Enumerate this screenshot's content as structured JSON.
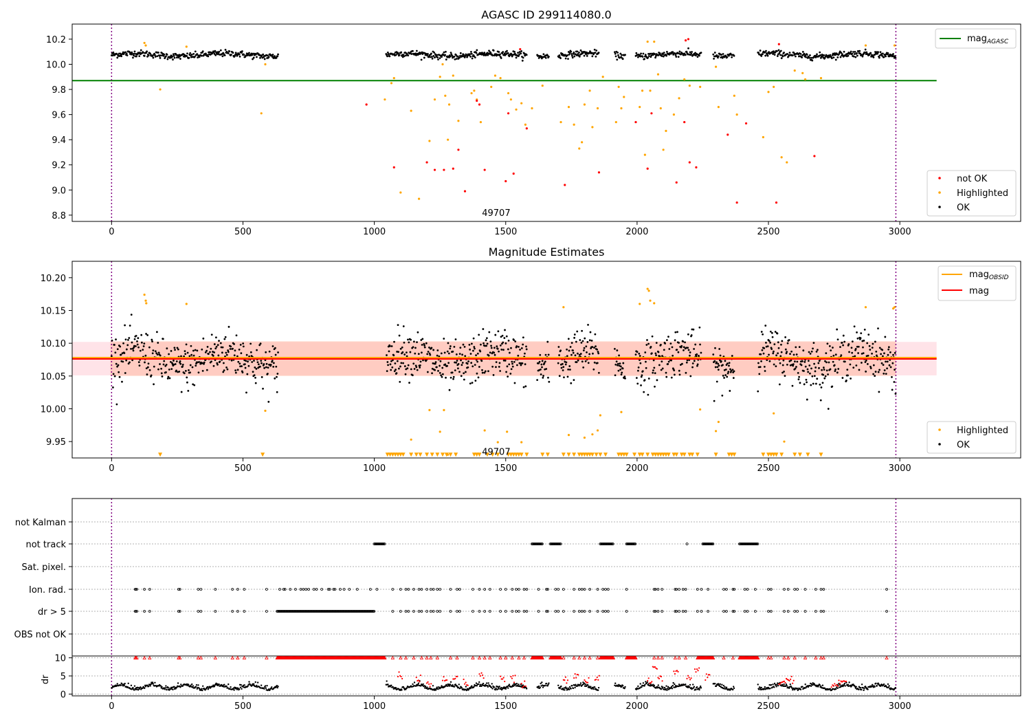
{
  "chart_data": [
    {
      "type": "scatter",
      "title": "AGASC ID 299114080.0",
      "xlabel": "",
      "ylabel": "",
      "xlim": [
        -150,
        3460
      ],
      "ylim": [
        8.75,
        10.32
      ],
      "xticks": [
        0,
        500,
        1000,
        1500,
        2000,
        2500,
        3000
      ],
      "yticks": [
        8.8,
        9.0,
        9.2,
        9.4,
        9.6,
        9.8,
        10.0,
        10.2
      ],
      "ytick_format": 1,
      "grid": false,
      "vlines": [
        0,
        2985
      ],
      "hlines": [
        {
          "name": "mag_AGASC",
          "y": 9.87,
          "x_range": [
            -150,
            3140
          ],
          "color": "#008000"
        }
      ],
      "annotation": {
        "text": "49707",
        "x": 1490,
        "y": 8.82
      },
      "series": [
        {
          "name": "not OK",
          "color": "#ff0000",
          "x": [
            970,
            1075,
            1200,
            1230,
            1265,
            1300,
            1320,
            1345,
            1390,
            1400,
            1420,
            1500,
            1510,
            1530,
            1555,
            1580,
            1725,
            1855,
            1995,
            2040,
            2055,
            2150,
            2180,
            2185,
            2195,
            2200,
            2225,
            2345,
            2380,
            2415,
            2530,
            2540,
            2675
          ],
          "y": [
            9.68,
            9.18,
            9.22,
            9.16,
            9.16,
            9.17,
            9.32,
            8.99,
            9.71,
            9.68,
            9.16,
            9.07,
            9.61,
            9.13,
            10.12,
            9.49,
            9.04,
            9.14,
            9.54,
            9.17,
            9.61,
            9.06,
            9.54,
            10.19,
            10.2,
            9.22,
            9.18,
            9.44,
            8.9,
            9.53,
            8.9,
            10.16,
            9.27
          ]
        },
        {
          "name": "Highlighted",
          "color": "#ffa500",
          "x": [
            125,
            130,
            185,
            285,
            570,
            585,
            1040,
            1065,
            1075,
            1100,
            1140,
            1170,
            1210,
            1230,
            1250,
            1260,
            1270,
            1280,
            1285,
            1300,
            1320,
            1370,
            1380,
            1390,
            1405,
            1445,
            1460,
            1480,
            1510,
            1520,
            1540,
            1560,
            1575,
            1600,
            1640,
            1710,
            1740,
            1760,
            1780,
            1790,
            1800,
            1820,
            1830,
            1850,
            1870,
            1920,
            1930,
            1940,
            1950,
            2010,
            2020,
            2030,
            2040,
            2050,
            2065,
            2080,
            2090,
            2100,
            2110,
            2140,
            2160,
            2180,
            2200,
            2240,
            2300,
            2310,
            2370,
            2380,
            2480,
            2500,
            2520,
            2550,
            2570,
            2600,
            2630,
            2640,
            2700,
            2870,
            2980
          ],
          "y": [
            10.17,
            10.15,
            9.8,
            10.14,
            9.61,
            10.0,
            9.72,
            9.85,
            9.89,
            8.98,
            9.63,
            8.93,
            9.39,
            9.72,
            9.9,
            10.0,
            9.75,
            9.4,
            9.68,
            9.91,
            9.55,
            9.77,
            9.79,
            9.72,
            9.54,
            9.82,
            9.91,
            9.89,
            9.77,
            9.72,
            9.64,
            9.69,
            9.52,
            9.65,
            9.83,
            9.54,
            9.66,
            9.52,
            9.33,
            9.38,
            9.68,
            9.79,
            9.5,
            9.65,
            9.9,
            9.54,
            9.82,
            9.65,
            9.74,
            9.66,
            9.79,
            9.28,
            10.18,
            9.79,
            10.18,
            9.92,
            9.65,
            9.32,
            9.47,
            9.6,
            9.73,
            9.88,
            9.83,
            9.82,
            9.98,
            9.66,
            9.75,
            9.6,
            9.42,
            9.78,
            9.82,
            9.26,
            9.22,
            9.95,
            9.93,
            9.88,
            9.89,
            10.15,
            10.15
          ]
        },
        {
          "name": "OK",
          "color": "#000000",
          "generated": true
        }
      ],
      "legend": [
        "not OK",
        "Highlighted",
        "OK"
      ],
      "legend_placement": "lower right"
    },
    {
      "type": "scatter",
      "title": "Magnitude Estimates",
      "xlabel": "",
      "ylabel": "",
      "xlim": [
        -150,
        3460
      ],
      "ylim": [
        9.925,
        10.225
      ],
      "xticks": [
        0,
        500,
        1000,
        1500,
        2000,
        2500,
        3000
      ],
      "yticks": [
        9.95,
        10.0,
        10.05,
        10.1,
        10.15,
        10.2
      ],
      "ytick_format": 2,
      "grid": false,
      "vlines": [
        0,
        2985
      ],
      "hlines": [
        {
          "name": "mag_OBSID",
          "y": 10.078,
          "x_range": [
            -150,
            3140
          ],
          "color": "#ffa500"
        },
        {
          "name": "mag",
          "y": 10.076,
          "x_range": [
            -150,
            3140
          ],
          "color": "#ff0000"
        }
      ],
      "bands": [
        {
          "y": [
            10.051,
            10.102
          ],
          "x_range": [
            -150,
            3140
          ],
          "color": "#ffc0cb",
          "opacity": 0.45
        },
        {
          "y": [
            10.05,
            10.103
          ],
          "x_range": [
            -5,
            2985
          ],
          "color": "#ffa07a",
          "opacity": 0.35
        }
      ],
      "annotation": {
        "text": "49707",
        "x": 1490,
        "y": 9.935
      },
      "series": [
        {
          "name": "Highlighted",
          "color": "#ffa500",
          "x": [
            125,
            130,
            132,
            285,
            585,
            1140,
            1210,
            1250,
            1265,
            1280,
            1420,
            1470,
            1505,
            1560,
            1720,
            1740,
            1800,
            1830,
            1850,
            1860,
            1940,
            2010,
            2040,
            2045,
            2050,
            2065,
            2240,
            2300,
            2310,
            2520,
            2560,
            2870,
            2975,
            2980
          ],
          "y": [
            10.174,
            10.165,
            10.161,
            10.16,
            9.997,
            9.953,
            9.998,
            9.965,
            9.998,
            9.93,
            9.967,
            9.949,
            9.965,
            9.949,
            10.155,
            9.96,
            9.956,
            9.961,
            9.967,
            9.99,
            9.995,
            10.16,
            10.183,
            10.18,
            10.165,
            10.161,
            9.999,
            9.966,
            9.98,
            9.993,
            9.95,
            10.155,
            10.153,
            10.155
          ]
        },
        {
          "name": "Highlighted-limits",
          "color": "#ffa500",
          "marker": "triangle-down",
          "y": 9.93,
          "x": [
            185,
            575,
            1050,
            1060,
            1070,
            1080,
            1090,
            1100,
            1110,
            1140,
            1160,
            1175,
            1200,
            1220,
            1240,
            1260,
            1275,
            1290,
            1310,
            1380,
            1390,
            1400,
            1430,
            1450,
            1470,
            1510,
            1520,
            1530,
            1540,
            1550,
            1560,
            1580,
            1640,
            1660,
            1720,
            1740,
            1760,
            1780,
            1790,
            1800,
            1810,
            1820,
            1830,
            1845,
            1860,
            1880,
            1930,
            1940,
            1950,
            1960,
            1990,
            2010,
            2020,
            2040,
            2060,
            2070,
            2080,
            2090,
            2100,
            2110,
            2120,
            2140,
            2150,
            2170,
            2180,
            2200,
            2210,
            2230,
            2300,
            2350,
            2360,
            2370,
            2480,
            2500,
            2510,
            2520,
            2530,
            2550,
            2600,
            2620,
            2650,
            2700
          ]
        },
        {
          "name": "OK",
          "color": "#000000",
          "generated": true
        }
      ],
      "legend": [
        "mag_OBSID",
        "mag",
        "Highlighted",
        "OK"
      ],
      "legend_placement": "upper right / lower right"
    },
    {
      "type": "scatter",
      "title": "",
      "xlabel": "",
      "ylabel": "",
      "xlim": [
        -150,
        3460
      ],
      "xticks": [
        0,
        500,
        1000,
        1500,
        2000,
        2500,
        3000
      ],
      "vlines": [
        0,
        2985
      ],
      "category_rows": [
        "not Kalman",
        "not track",
        "Sat. pixel.",
        "Ion. rad.",
        "dr > 5",
        "OBS not OK"
      ],
      "flag_points": {
        "not Kalman": [],
        "not track": [
          [
            1000,
            1040
          ],
          [
            1600,
            1640
          ],
          [
            1670,
            1710
          ],
          [
            1860,
            1910
          ],
          [
            1960,
            1995
          ],
          [
            2190,
            2192
          ],
          [
            2250,
            2290
          ],
          [
            2390,
            2460
          ]
        ],
        "Sat. pixel.": [],
        "Ion. rad.": [
          90,
          92,
          96,
          125,
          145,
          255,
          260,
          330,
          340,
          395,
          460,
          480,
          505,
          590,
          640,
          655,
          660,
          680,
          700,
          720,
          730,
          740,
          750,
          770,
          780,
          800,
          825,
          830,
          845,
          850,
          870,
          885,
          905,
          935,
          985,
          1010,
          1070,
          1100,
          1120,
          1130,
          1150,
          1170,
          1180,
          1200,
          1215,
          1225,
          1240,
          1250,
          1290,
          1315,
          1325,
          1375,
          1400,
          1420,
          1440,
          1480,
          1500,
          1525,
          1540,
          1550,
          1570,
          1580,
          1625,
          1655,
          1660,
          1690,
          1700,
          1720,
          1760,
          1780,
          1790,
          1800,
          1820,
          1850,
          1870,
          1880,
          1890,
          1960,
          2065,
          2070,
          2080,
          2095,
          2145,
          2150,
          2160,
          2175,
          2185,
          2230,
          2245,
          2270,
          2330,
          2340,
          2365,
          2370,
          2410,
          2420,
          2450,
          2500,
          2510,
          2560,
          2575,
          2600,
          2610,
          2640,
          2680,
          2700,
          2710,
          2950
        ],
        "dr > 5": [
          90,
          92,
          96,
          125,
          145,
          255,
          260,
          330,
          340,
          395,
          460,
          480,
          505,
          590,
          [
            630,
            1000
          ],
          1070,
          1100,
          1120,
          1130,
          1150,
          1170,
          1180,
          1200,
          1215,
          1225,
          1240,
          1250,
          1290,
          1315,
          1325,
          1375,
          1400,
          1420,
          1440,
          1480,
          1500,
          1525,
          1540,
          1550,
          1570,
          1580,
          1625,
          1655,
          1660,
          1690,
          1700,
          1720,
          1760,
          1780,
          1790,
          1800,
          1820,
          1850,
          1870,
          1880,
          1890,
          1960,
          2065,
          2070,
          2080,
          2095,
          2145,
          2150,
          2160,
          2175,
          2185,
          2230,
          2245,
          2270,
          2330,
          2340,
          2365,
          2370,
          2410,
          2420,
          2450,
          2500,
          2510,
          2560,
          2575,
          2600,
          2610,
          2640,
          2680,
          2700,
          2710,
          2950
        ],
        "OBS not OK": []
      },
      "dr_panel": {
        "ylabel": "dr",
        "yticks": [
          0,
          5,
          10
        ],
        "ylim": [
          -0.5,
          10.5
        ],
        "clip": 10,
        "ok_color": "#000000",
        "flag_color": "#ff0000",
        "saturated_x": [
          90,
          92,
          96,
          125,
          145,
          255,
          260,
          330,
          340,
          395,
          460,
          480,
          505,
          590,
          [
            630,
            1040
          ],
          1070,
          1100,
          1120,
          1150,
          1180,
          1200,
          1215,
          1240,
          1290,
          1315,
          1375,
          1400,
          1420,
          1440,
          1480,
          1500,
          1525,
          1550,
          1570,
          [
            1600,
            1640
          ],
          [
            1670,
            1710
          ],
          1720,
          1760,
          1780,
          1800,
          1820,
          1850,
          [
            1860,
            1910
          ],
          [
            1960,
            1995
          ],
          2065,
          2080,
          2095,
          2145,
          2160,
          2185,
          [
            2230,
            2290
          ],
          2330,
          2365,
          2410,
          [
            2390,
            2460
          ],
          2500,
          2510,
          2560,
          2575,
          2600,
          2640,
          2680,
          2700,
          2710,
          2950
        ],
        "generated": true
      }
    }
  ]
}
